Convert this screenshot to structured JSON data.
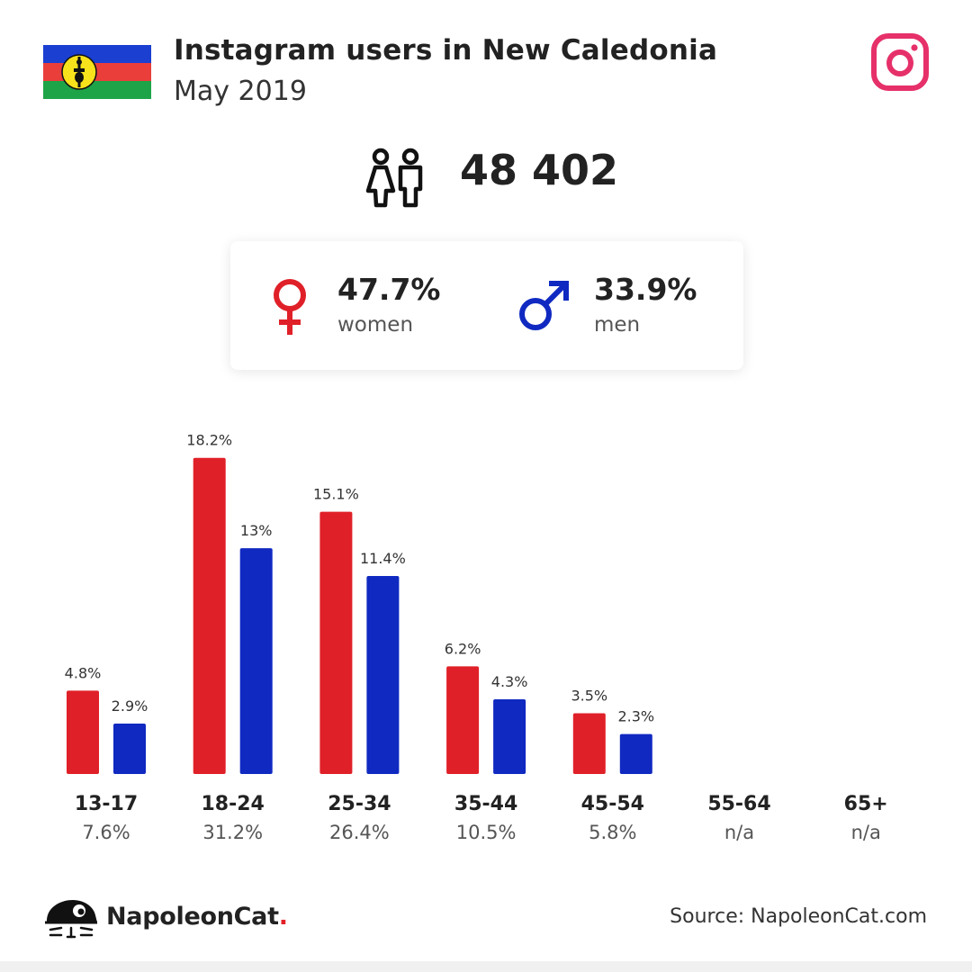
{
  "header": {
    "title": "Instagram users in New Caledonia",
    "subtitle": "May 2019"
  },
  "summary": {
    "total_users": "48 402",
    "women_pct": "47.7%",
    "women_label": "women",
    "men_pct": "33.9%",
    "men_label": "men"
  },
  "colors": {
    "women": "#e02028",
    "men": "#1029c1",
    "instagram": "#e6306a"
  },
  "chart_data": {
    "type": "bar",
    "categories": [
      "13-17",
      "18-24",
      "25-34",
      "35-44",
      "45-54",
      "55-64",
      "65+"
    ],
    "series": [
      {
        "name": "women",
        "values": [
          4.8,
          18.2,
          15.1,
          6.2,
          3.5,
          null,
          null
        ],
        "labels": [
          "4.8%",
          "18.2%",
          "15.1%",
          "6.2%",
          "3.5%",
          "",
          ""
        ]
      },
      {
        "name": "men",
        "values": [
          2.9,
          13,
          11.4,
          4.3,
          2.3,
          null,
          null
        ],
        "labels": [
          "2.9%",
          "13%",
          "11.4%",
          "4.3%",
          "2.3%",
          "",
          ""
        ]
      }
    ],
    "totals": [
      "7.6%",
      "31.2%",
      "26.4%",
      "10.5%",
      "5.8%",
      "n/a",
      "n/a"
    ],
    "ylim": [
      0,
      20
    ]
  },
  "footer": {
    "brand_name": "NapoleonCat",
    "brand_dot": ".",
    "source": "Source: NapoleonCat.com"
  }
}
